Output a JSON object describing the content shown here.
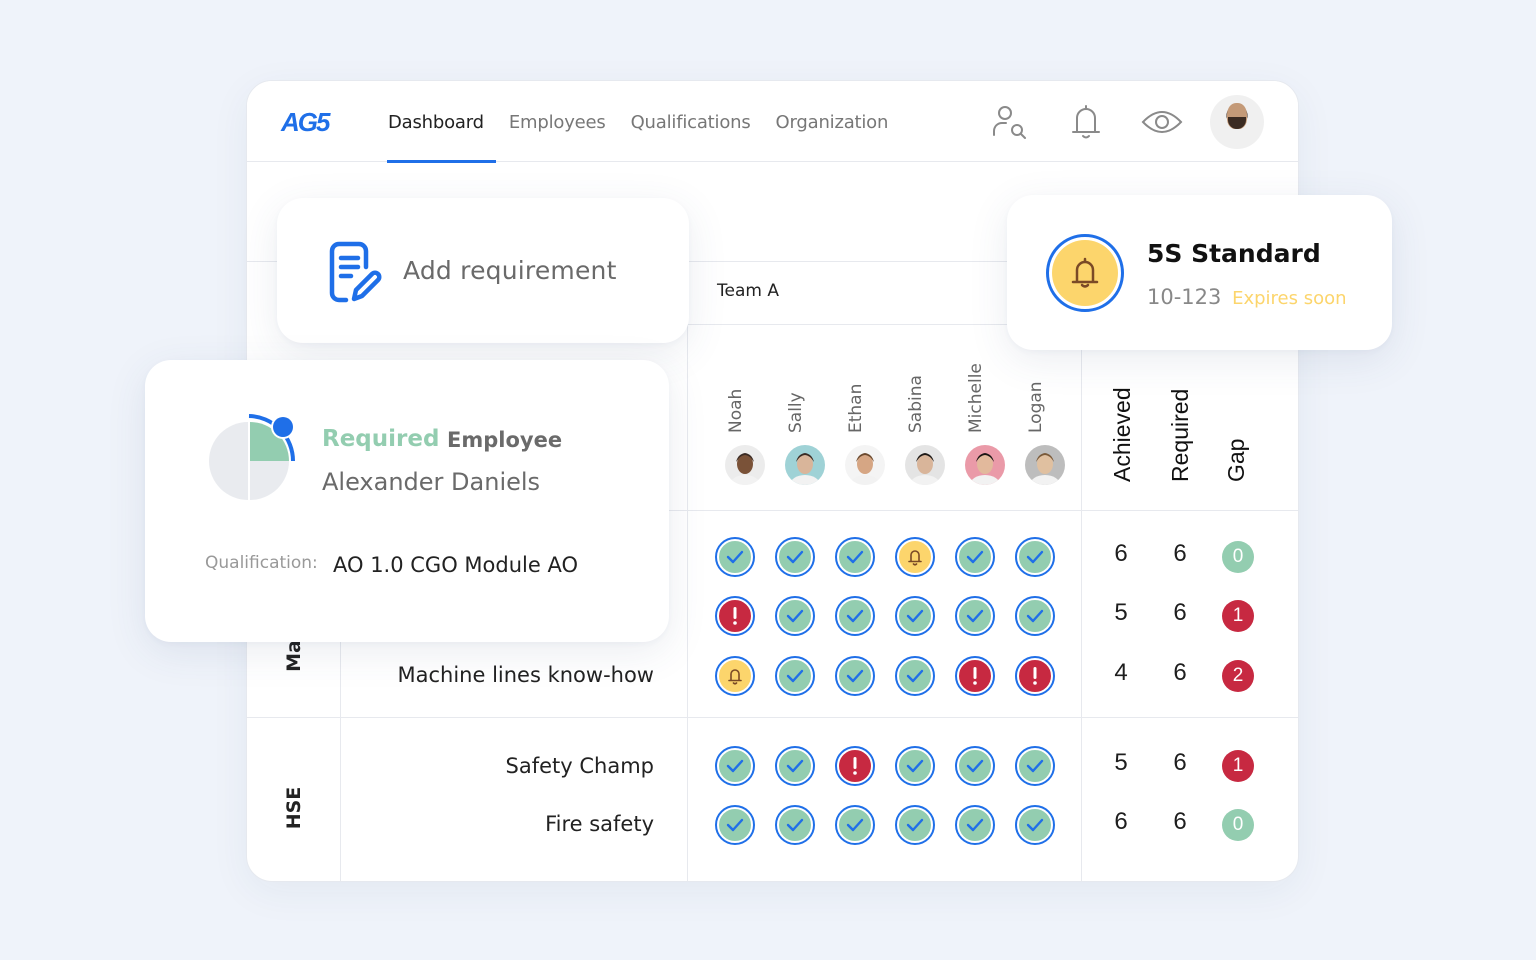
{
  "brand": {
    "logo": "AG5",
    "accent": "#1f6fe8"
  },
  "nav": {
    "items": [
      {
        "label": "Dashboard",
        "active": true
      },
      {
        "label": "Employees",
        "active": false
      },
      {
        "label": "Qualifications",
        "active": false
      },
      {
        "label": "Organization",
        "active": false
      }
    ],
    "icons": [
      "user-search-icon",
      "bell-icon",
      "eye-icon",
      "user-avatar"
    ]
  },
  "matrix": {
    "team": "Team A",
    "employees": [
      "Noah",
      "Sally",
      "Ethan",
      "Sabina",
      "Michelle",
      "Logan"
    ],
    "stat_headers": {
      "achieved": "Achieved",
      "required": "Required",
      "gap": "Gap"
    },
    "groups": [
      {
        "label": "Ma",
        "rows": [
          {
            "qualification": "",
            "cells": [
              "ok",
              "ok",
              "ok",
              "warn",
              "ok",
              "ok"
            ],
            "achieved": "6",
            "required": "6",
            "gap": "0"
          },
          {
            "qualification": "",
            "cells": [
              "err",
              "ok",
              "ok",
              "ok",
              "ok",
              "ok"
            ],
            "achieved": "5",
            "required": "6",
            "gap": "1"
          },
          {
            "qualification": "Machine lines know-how",
            "cells": [
              "warn",
              "ok",
              "ok",
              "ok",
              "err",
              "err"
            ],
            "achieved": "4",
            "required": "6",
            "gap": "2"
          }
        ]
      },
      {
        "label": "HSE",
        "rows": [
          {
            "qualification": "Safety Champ",
            "cells": [
              "ok",
              "ok",
              "err",
              "ok",
              "ok",
              "ok"
            ],
            "achieved": "5",
            "required": "6",
            "gap": "1"
          },
          {
            "qualification": "Fire safety",
            "cells": [
              "ok",
              "ok",
              "ok",
              "ok",
              "ok",
              "ok"
            ],
            "achieved": "6",
            "required": "6",
            "gap": "0"
          }
        ]
      }
    ],
    "status_colors": {
      "ok": "#93cdb0",
      "warn": "#fcd56c",
      "err": "#c72941"
    }
  },
  "add_requirement": {
    "label": "Add requirement"
  },
  "standard_card": {
    "title": "5S Standard",
    "code": "10-123",
    "status": "Expires soon"
  },
  "employee_card": {
    "status": "Required",
    "role": "Employee",
    "name": "Alexander Daniels",
    "qualification_label": "Qualification:",
    "qualification_value": "AO 1.0 CGO Module AO"
  }
}
